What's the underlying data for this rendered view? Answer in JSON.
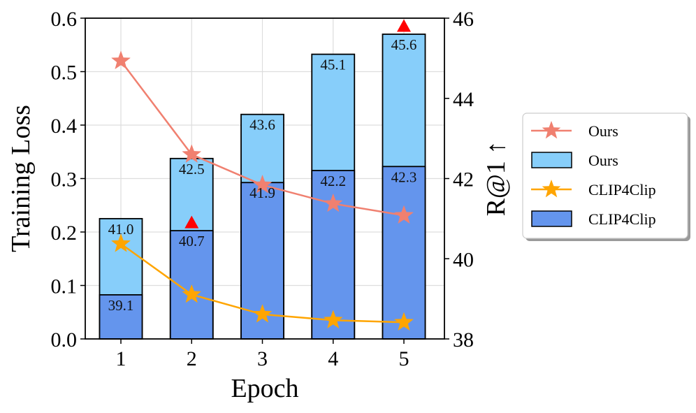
{
  "chart_data": {
    "type": "bar+line",
    "categories": [
      "1",
      "2",
      "3",
      "4",
      "5"
    ],
    "xlabel": "Epoch",
    "ylabel_left": "Training Loss",
    "ylabel_right": "R@1 ↑",
    "ylim_left": [
      0.0,
      0.6
    ],
    "ylim_right": [
      38,
      46
    ],
    "yticks_left": [
      "0.0",
      "0.1",
      "0.2",
      "0.3",
      "0.4",
      "0.5",
      "0.6"
    ],
    "yticks_right": [
      "38",
      "40",
      "42",
      "44",
      "46"
    ],
    "grid": true,
    "colors": {
      "ours_line": "#f08070",
      "clip_line": "#ffa500",
      "ours_bar": "#87cefa",
      "clip_bar": "#6495ed",
      "marker_best": "#ff0000",
      "edge": "#000000"
    },
    "bars": {
      "ours": {
        "name": "Ours",
        "values": [
          41.0,
          42.5,
          43.6,
          45.1,
          45.6
        ],
        "labels": [
          "41.0",
          "42.5",
          "43.6",
          "45.1",
          "45.6"
        ]
      },
      "clip4clip": {
        "name": "CLIP4Clip",
        "values": [
          39.1,
          40.7,
          41.9,
          42.2,
          42.3
        ],
        "labels": [
          "39.1",
          "40.7",
          "41.9",
          "42.2",
          "42.3"
        ]
      }
    },
    "lines": {
      "ours": {
        "name": "Ours",
        "values": [
          0.52,
          0.345,
          0.288,
          0.253,
          0.231
        ]
      },
      "clip4clip": {
        "name": "CLIP4Clip",
        "values": [
          0.178,
          0.083,
          0.046,
          0.035,
          0.031
        ]
      }
    },
    "best_markers": [
      {
        "category": "2",
        "value": 40.9
      },
      {
        "category": "5",
        "value": 45.8
      }
    ],
    "legend": {
      "position": "right",
      "entries": [
        {
          "label": "Ours",
          "kind": "line",
          "series": "ours"
        },
        {
          "label": "Ours",
          "kind": "bar",
          "series": "ours"
        },
        {
          "label": "CLIP4Clip",
          "kind": "line",
          "series": "clip4clip"
        },
        {
          "label": "CLIP4Clip",
          "kind": "bar",
          "series": "clip4clip"
        }
      ]
    }
  }
}
